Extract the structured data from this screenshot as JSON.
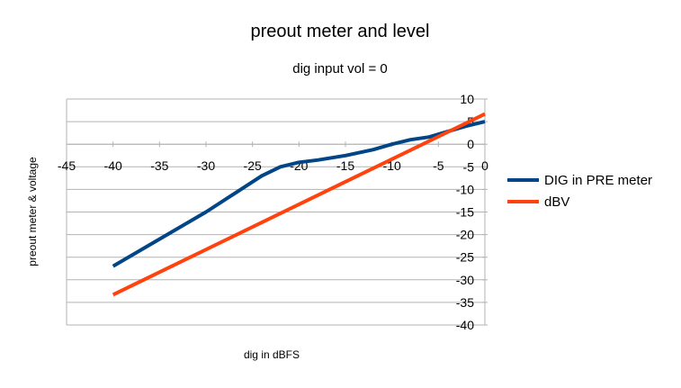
{
  "chart_data": {
    "type": "line",
    "title": "preout meter and level",
    "subtitle": "dig input vol = 0",
    "xlabel": "dig in dBFS",
    "ylabel": "preout meter & voltage",
    "xlim": [
      -45,
      0
    ],
    "ylim": [
      -40,
      10
    ],
    "x_ticks": [
      -45,
      -40,
      -35,
      -30,
      -25,
      -20,
      -15,
      -10,
      -5,
      0
    ],
    "y_ticks": [
      10,
      5,
      0,
      -5,
      -10,
      -15,
      -20,
      -25,
      -30,
      -35,
      -40
    ],
    "grid": "horizontal",
    "legend_position": "right",
    "series": [
      {
        "name": "DIG in PRE meter",
        "color": "#004586",
        "x": [
          -40,
          -35,
          -30,
          -27,
          -24,
          -22,
          -21,
          -20,
          -18,
          -15,
          -12,
          -10,
          -8,
          -6,
          -4,
          -2,
          0
        ],
        "y": [
          -27,
          -21,
          -15,
          -11,
          -7,
          -5,
          -4.5,
          -4,
          -3.5,
          -2.5,
          -1.2,
          0,
          1,
          1.6,
          2.8,
          4,
          5
        ]
      },
      {
        "name": "dBV",
        "color": "#ff420e",
        "x": [
          -40,
          0
        ],
        "y": [
          -33.3,
          6.7
        ]
      }
    ]
  }
}
